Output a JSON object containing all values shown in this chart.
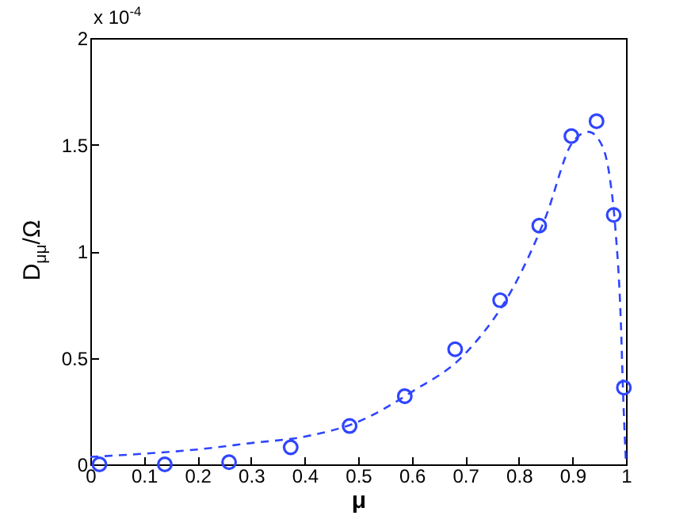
{
  "chart_data": {
    "type": "scatter",
    "xlabel": "μ",
    "ylabel": "D$_{μμ}$/Ω",
    "annotations": [
      "x 10$^{-4}$"
    ],
    "series": [
      {
        "color": "#2f45ff",
        "marker": "circle",
        "x": [
          0.017,
          0.139,
          0.259,
          0.374,
          0.484,
          0.587,
          0.681,
          0.765,
          0.838,
          0.898,
          0.945,
          0.977,
          0.996
        ],
        "values": [
          0,
          0,
          0.01,
          0.08,
          0.18,
          0.32,
          0.54,
          0.77,
          1.12,
          1.54,
          1.61,
          1.17,
          0.36
        ]
      },
      {
        "type": "line",
        "color": "#2f45ff",
        "line_style": "dashed",
        "marker": "none",
        "x": [
          0,
          0.1,
          0.2,
          0.3,
          0.4,
          0.5,
          0.6,
          0.7,
          0.8,
          0.85,
          0.9,
          0.93,
          0.95,
          0.97,
          0.98,
          0.99,
          0.995,
          1.0
        ],
        "values": [
          0.035,
          0.05,
          0.07,
          0.1,
          0.13,
          0.2,
          0.34,
          0.52,
          0.88,
          1.16,
          1.51,
          1.56,
          1.52,
          1.34,
          1.11,
          0.69,
          0.3,
          0
        ]
      }
    ],
    "grid": false,
    "xlim": [
      0,
      1
    ],
    "xticks": [
      0,
      0.1,
      0.2,
      0.3,
      0.4,
      0.5,
      0.6,
      0.7,
      0.8,
      0.9,
      1
    ],
    "ylim": [
      0,
      2
    ],
    "yticks": [
      0,
      0.5,
      1,
      1.5,
      2
    ]
  }
}
